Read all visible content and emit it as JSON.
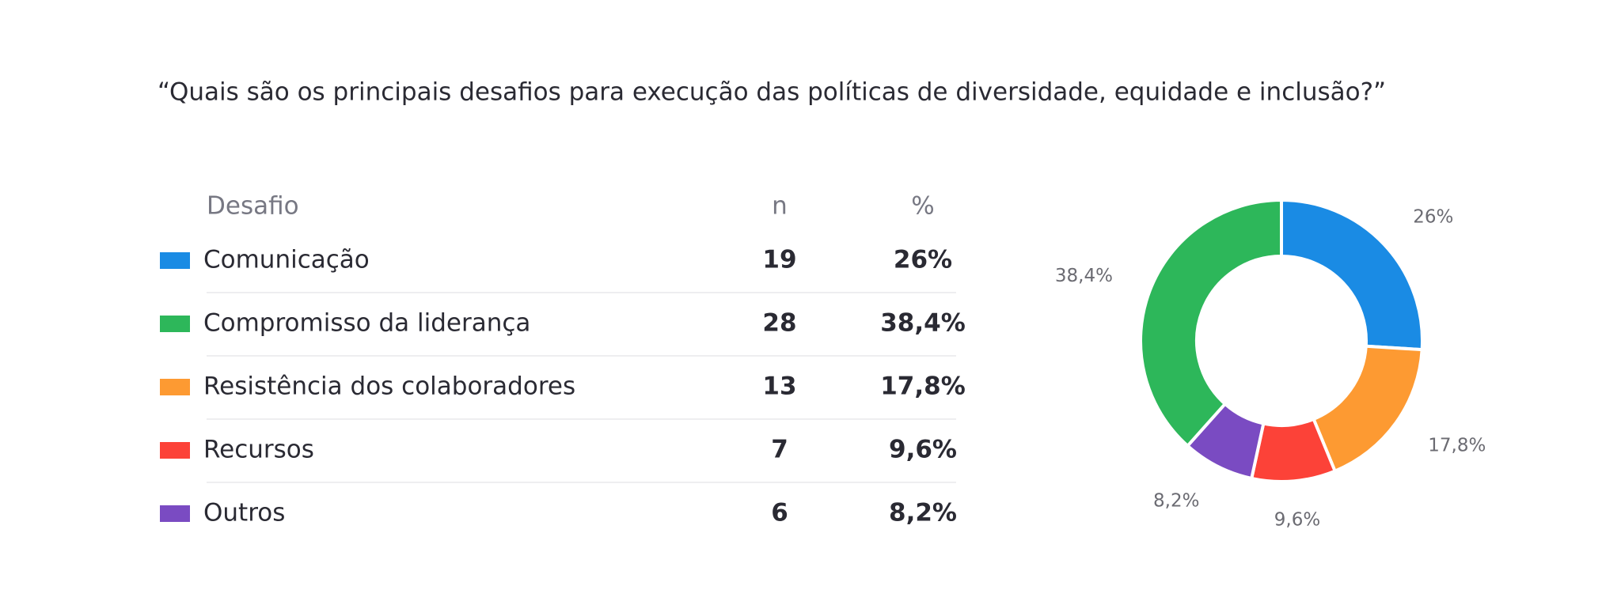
{
  "title": "“Quais são os principais desafios para execução das políticas de diversidade, equidade e inclusão?”",
  "table": {
    "headers": [
      "Desafio",
      "n",
      "%"
    ],
    "rows": [
      {
        "name": "Comunicação",
        "n": 19,
        "pct": "26%",
        "color": "#1a8be4"
      },
      {
        "name": "Compromisso da liderança",
        "n": 28,
        "pct": "38,4%",
        "color": "#2db75a"
      },
      {
        "name": "Resistência dos colaboradores",
        "n": 13,
        "pct": "17,8%",
        "color": "#fd9a32"
      },
      {
        "name": "Recursos",
        "n": 7,
        "pct": "9,6%",
        "color": "#fc4238"
      },
      {
        "name": "Outros",
        "n": 6,
        "pct": "8,2%",
        "color": "#7a4bc2"
      }
    ]
  },
  "chart_data": {
    "type": "donut",
    "values": [
      26,
      17.8,
      9.6,
      8.2,
      38.4
    ],
    "value_labels": [
      "26%",
      "17,8%",
      "9,6%",
      "8,2%",
      "38,4%"
    ],
    "colors": [
      "#1a8be4",
      "#fd9a32",
      "#fc4238",
      "#7a4bc2",
      "#2db75a"
    ]
  }
}
